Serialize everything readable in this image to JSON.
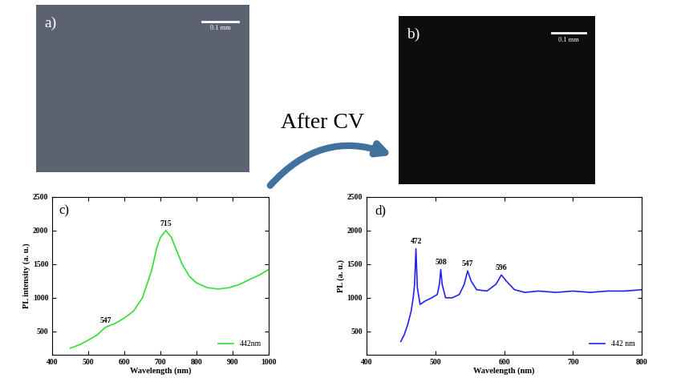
{
  "images": [
    {
      "label": "a)",
      "scale_bar": "0.1 mm",
      "color": "#5b6272"
    },
    {
      "label": "b)",
      "scale_bar": "0.1 mm",
      "color": "#0d0d0d"
    }
  ],
  "arrow": {
    "label": "After CV"
  },
  "chart_data": [
    {
      "type": "line",
      "title": "c)",
      "x_label": "Wavelength (nm)",
      "y_label": "PL intensity (a. u.)",
      "x": [
        450,
        475,
        500,
        525,
        547,
        575,
        600,
        625,
        650,
        675,
        690,
        700,
        715,
        730,
        745,
        760,
        780,
        800,
        830,
        860,
        890,
        920,
        950,
        975,
        1000
      ],
      "series": [
        {
          "name": "442nm",
          "color": "#33dd33",
          "values": [
            250,
            300,
            370,
            450,
            560,
            620,
            700,
            800,
            1000,
            1400,
            1750,
            1900,
            2000,
            1900,
            1700,
            1500,
            1320,
            1220,
            1150,
            1130,
            1150,
            1200,
            1280,
            1340,
            1420
          ]
        }
      ],
      "xlim": [
        400,
        1000
      ],
      "xticks": [
        400,
        500,
        600,
        700,
        800,
        900,
        1000
      ],
      "ylim": [
        150,
        2500
      ],
      "yticks": [
        500,
        1000,
        1500,
        2000,
        2500
      ],
      "annotations": [
        {
          "text": "547",
          "x": 547,
          "y": 560
        },
        {
          "text": "715",
          "x": 715,
          "y": 2000
        }
      ],
      "legend": "lower right",
      "grid": false
    },
    {
      "type": "line",
      "title": "d)",
      "x_label": "Wavelength (nm)",
      "y_label": "PL (a. u.)",
      "x": [
        450,
        455,
        460,
        465,
        468,
        470,
        472,
        474,
        478,
        485,
        495,
        503,
        506,
        508,
        510,
        515,
        525,
        535,
        542,
        547,
        552,
        560,
        575,
        588,
        596,
        603,
        615,
        630,
        650,
        675,
        700,
        725,
        750,
        775,
        800
      ],
      "series": [
        {
          "name": "442 nm",
          "color": "#2222ee",
          "values": [
            350,
            450,
            600,
            800,
            1000,
            1200,
            1730,
            1150,
            900,
            950,
            1000,
            1050,
            1200,
            1420,
            1200,
            1000,
            1000,
            1050,
            1200,
            1400,
            1250,
            1120,
            1100,
            1200,
            1340,
            1250,
            1120,
            1080,
            1100,
            1080,
            1100,
            1080,
            1100,
            1100,
            1120
          ]
        }
      ],
      "xlim": [
        400,
        800
      ],
      "xticks": [
        400,
        500,
        600,
        700,
        800
      ],
      "ylim": [
        150,
        2500
      ],
      "yticks": [
        500,
        1000,
        1500,
        2000,
        2500
      ],
      "annotations": [
        {
          "text": "472",
          "x": 472,
          "y": 1730
        },
        {
          "text": "508",
          "x": 508,
          "y": 1420
        },
        {
          "text": "547",
          "x": 547,
          "y": 1400
        },
        {
          "text": "596",
          "x": 596,
          "y": 1340
        }
      ],
      "legend": "lower right",
      "grid": false
    }
  ]
}
